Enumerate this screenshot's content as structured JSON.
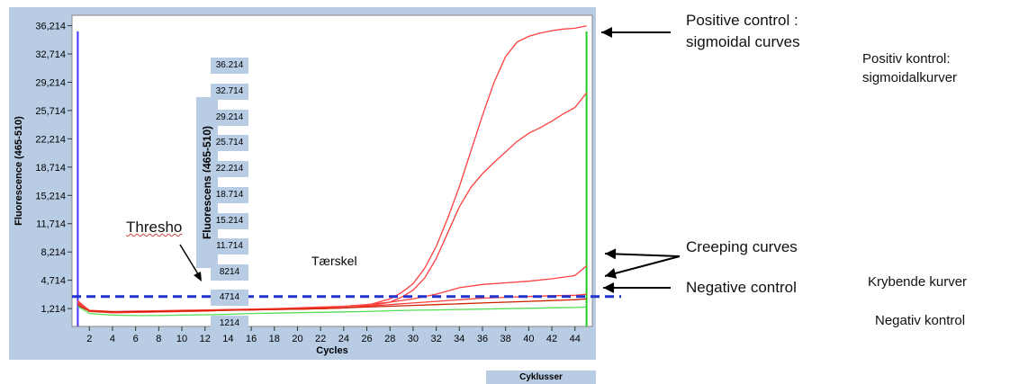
{
  "chart_data": {
    "type": "line",
    "ylabel": "Fluorescence (465-510)",
    "xlabel": "Cycles",
    "xlim": [
      0.5,
      45.5
    ],
    "ylim": [
      -1.0,
      37.5
    ],
    "x_ticks": [
      2,
      4,
      6,
      8,
      10,
      12,
      14,
      16,
      18,
      20,
      22,
      24,
      26,
      28,
      30,
      32,
      34,
      36,
      38,
      40,
      42,
      44
    ],
    "y_ticks": [
      "1,214",
      "4,714",
      "8,214",
      "11,714",
      "15,214",
      "18,714",
      "22,214",
      "25,714",
      "29,214",
      "32,714",
      "36,214"
    ],
    "y_tick_values": [
      1.214,
      4.714,
      8.214,
      11.714,
      15.214,
      18.714,
      22.214,
      25.714,
      29.214,
      32.714,
      36.214
    ],
    "threshold": {
      "label": "Thresho",
      "value": 2.7,
      "color": "#2233cc"
    },
    "series": [
      {
        "color": "#ff4040",
        "x": [
          1,
          2,
          4,
          6,
          8,
          10,
          12,
          14,
          16,
          18,
          20,
          22,
          24,
          26,
          28,
          29,
          30,
          31,
          32,
          33,
          34,
          35,
          36,
          37,
          38,
          39,
          40,
          41,
          42,
          43,
          44,
          45
        ],
        "y": [
          2.2,
          0.9,
          0.7,
          0.75,
          0.8,
          0.85,
          0.9,
          1.0,
          1.05,
          1.1,
          1.15,
          1.2,
          1.3,
          1.6,
          2.4,
          3.2,
          4.3,
          6.2,
          8.9,
          12.4,
          16.3,
          20.7,
          25.1,
          29.2,
          32.4,
          34.2,
          34.9,
          35.3,
          35.6,
          35.8,
          35.9,
          36.2
        ]
      },
      {
        "color": "#ff4040",
        "x": [
          1,
          2,
          4,
          6,
          8,
          10,
          12,
          14,
          16,
          18,
          20,
          22,
          24,
          26,
          28,
          29,
          30,
          31,
          32,
          33,
          34,
          35,
          36,
          37,
          38,
          39,
          40,
          41,
          42,
          43,
          44,
          45
        ],
        "y": [
          2.0,
          0.85,
          0.7,
          0.75,
          0.8,
          0.85,
          0.9,
          1.0,
          1.05,
          1.1,
          1.15,
          1.2,
          1.3,
          1.5,
          2.0,
          2.6,
          3.5,
          5.0,
          7.4,
          10.6,
          13.8,
          16.2,
          17.9,
          19.3,
          20.6,
          21.9,
          22.9,
          23.6,
          24.4,
          25.3,
          26.1,
          27.9
        ]
      },
      {
        "color": "#ff4040",
        "x": [
          1,
          2,
          4,
          6,
          8,
          10,
          12,
          14,
          16,
          18,
          20,
          22,
          24,
          26,
          28,
          30,
          32,
          34,
          36,
          38,
          40,
          42,
          44,
          45
        ],
        "y": [
          2.1,
          1.0,
          0.85,
          0.9,
          0.95,
          1.0,
          1.05,
          1.1,
          1.15,
          1.2,
          1.3,
          1.4,
          1.5,
          1.7,
          2.0,
          2.4,
          3.0,
          3.8,
          4.2,
          4.4,
          4.6,
          4.9,
          5.3,
          6.5
        ]
      },
      {
        "color": "#ff4040",
        "x": [
          1,
          2,
          4,
          6,
          8,
          10,
          12,
          14,
          16,
          18,
          20,
          22,
          24,
          26,
          28,
          30,
          32,
          34,
          36,
          38,
          40,
          42,
          44,
          45
        ],
        "y": [
          1.8,
          0.9,
          0.8,
          0.85,
          0.9,
          0.95,
          1.0,
          1.05,
          1.1,
          1.15,
          1.2,
          1.3,
          1.35,
          1.5,
          1.7,
          1.9,
          2.1,
          2.3,
          2.5,
          2.6,
          2.7,
          2.8,
          2.85,
          3.0
        ]
      },
      {
        "color": "#cc2200",
        "x": [
          1,
          2,
          4,
          6,
          8,
          10,
          12,
          14,
          16,
          18,
          20,
          22,
          24,
          26,
          28,
          30,
          32,
          34,
          36,
          38,
          40,
          42,
          44,
          45
        ],
        "y": [
          1.6,
          0.9,
          0.8,
          0.82,
          0.85,
          0.9,
          0.95,
          1.0,
          1.05,
          1.1,
          1.15,
          1.2,
          1.3,
          1.4,
          1.5,
          1.6,
          1.7,
          1.8,
          1.9,
          2.0,
          2.1,
          2.2,
          2.3,
          2.4
        ]
      },
      {
        "color": "#55dd55",
        "x": [
          1,
          2,
          4,
          6,
          8,
          10,
          12,
          14,
          16,
          18,
          20,
          22,
          24,
          26,
          28,
          30,
          32,
          34,
          36,
          38,
          40,
          42,
          44,
          45
        ],
        "y": [
          1.5,
          0.6,
          0.4,
          0.35,
          0.35,
          0.4,
          0.45,
          0.5,
          0.6,
          0.65,
          0.7,
          0.75,
          0.8,
          0.85,
          0.95,
          1.0,
          1.05,
          1.1,
          1.15,
          1.2,
          1.25,
          1.3,
          1.35,
          1.4
        ]
      }
    ],
    "markers": {
      "start_x": 1,
      "end_x": 45,
      "start_color": "#4433ff",
      "end_color": "#22cc22"
    }
  },
  "annotations_en": {
    "positive_line1": "Positive control :",
    "positive_line2": "sigmoidal curves",
    "creeping": "Creeping curves",
    "negative": "Negative control"
  },
  "annotations_da": {
    "positive_line1": "Positiv kontrol:",
    "positive_line2": "sigmoidalkurver",
    "creeping": "Krybende kurver",
    "negative": "Negativ kontrol",
    "threshold": "Tærskel",
    "ylabel": "Fluorescens (465-510)",
    "xlabel": "Cyklusser",
    "y_ticks": [
      "36.214",
      "32.714",
      "29.214",
      "25.714",
      "22.214",
      "18.714",
      "15.214",
      "11.714",
      "8214",
      "4714",
      "1214"
    ]
  }
}
